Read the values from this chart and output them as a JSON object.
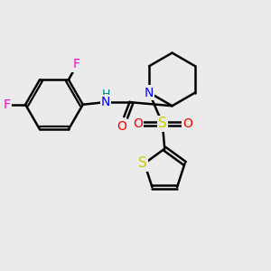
{
  "bg_color": "#ebebeb",
  "bond_color": "#000000",
  "bond_width": 1.8,
  "dbo": 0.055,
  "atom_colors": {
    "F": "#ff00cc",
    "N": "#0000ff",
    "O": "#ff0000",
    "S": "#cccc00",
    "H_color": "#008080"
  },
  "font_size": 10,
  "fig_size": [
    3.0,
    3.0
  ],
  "dpi": 100
}
